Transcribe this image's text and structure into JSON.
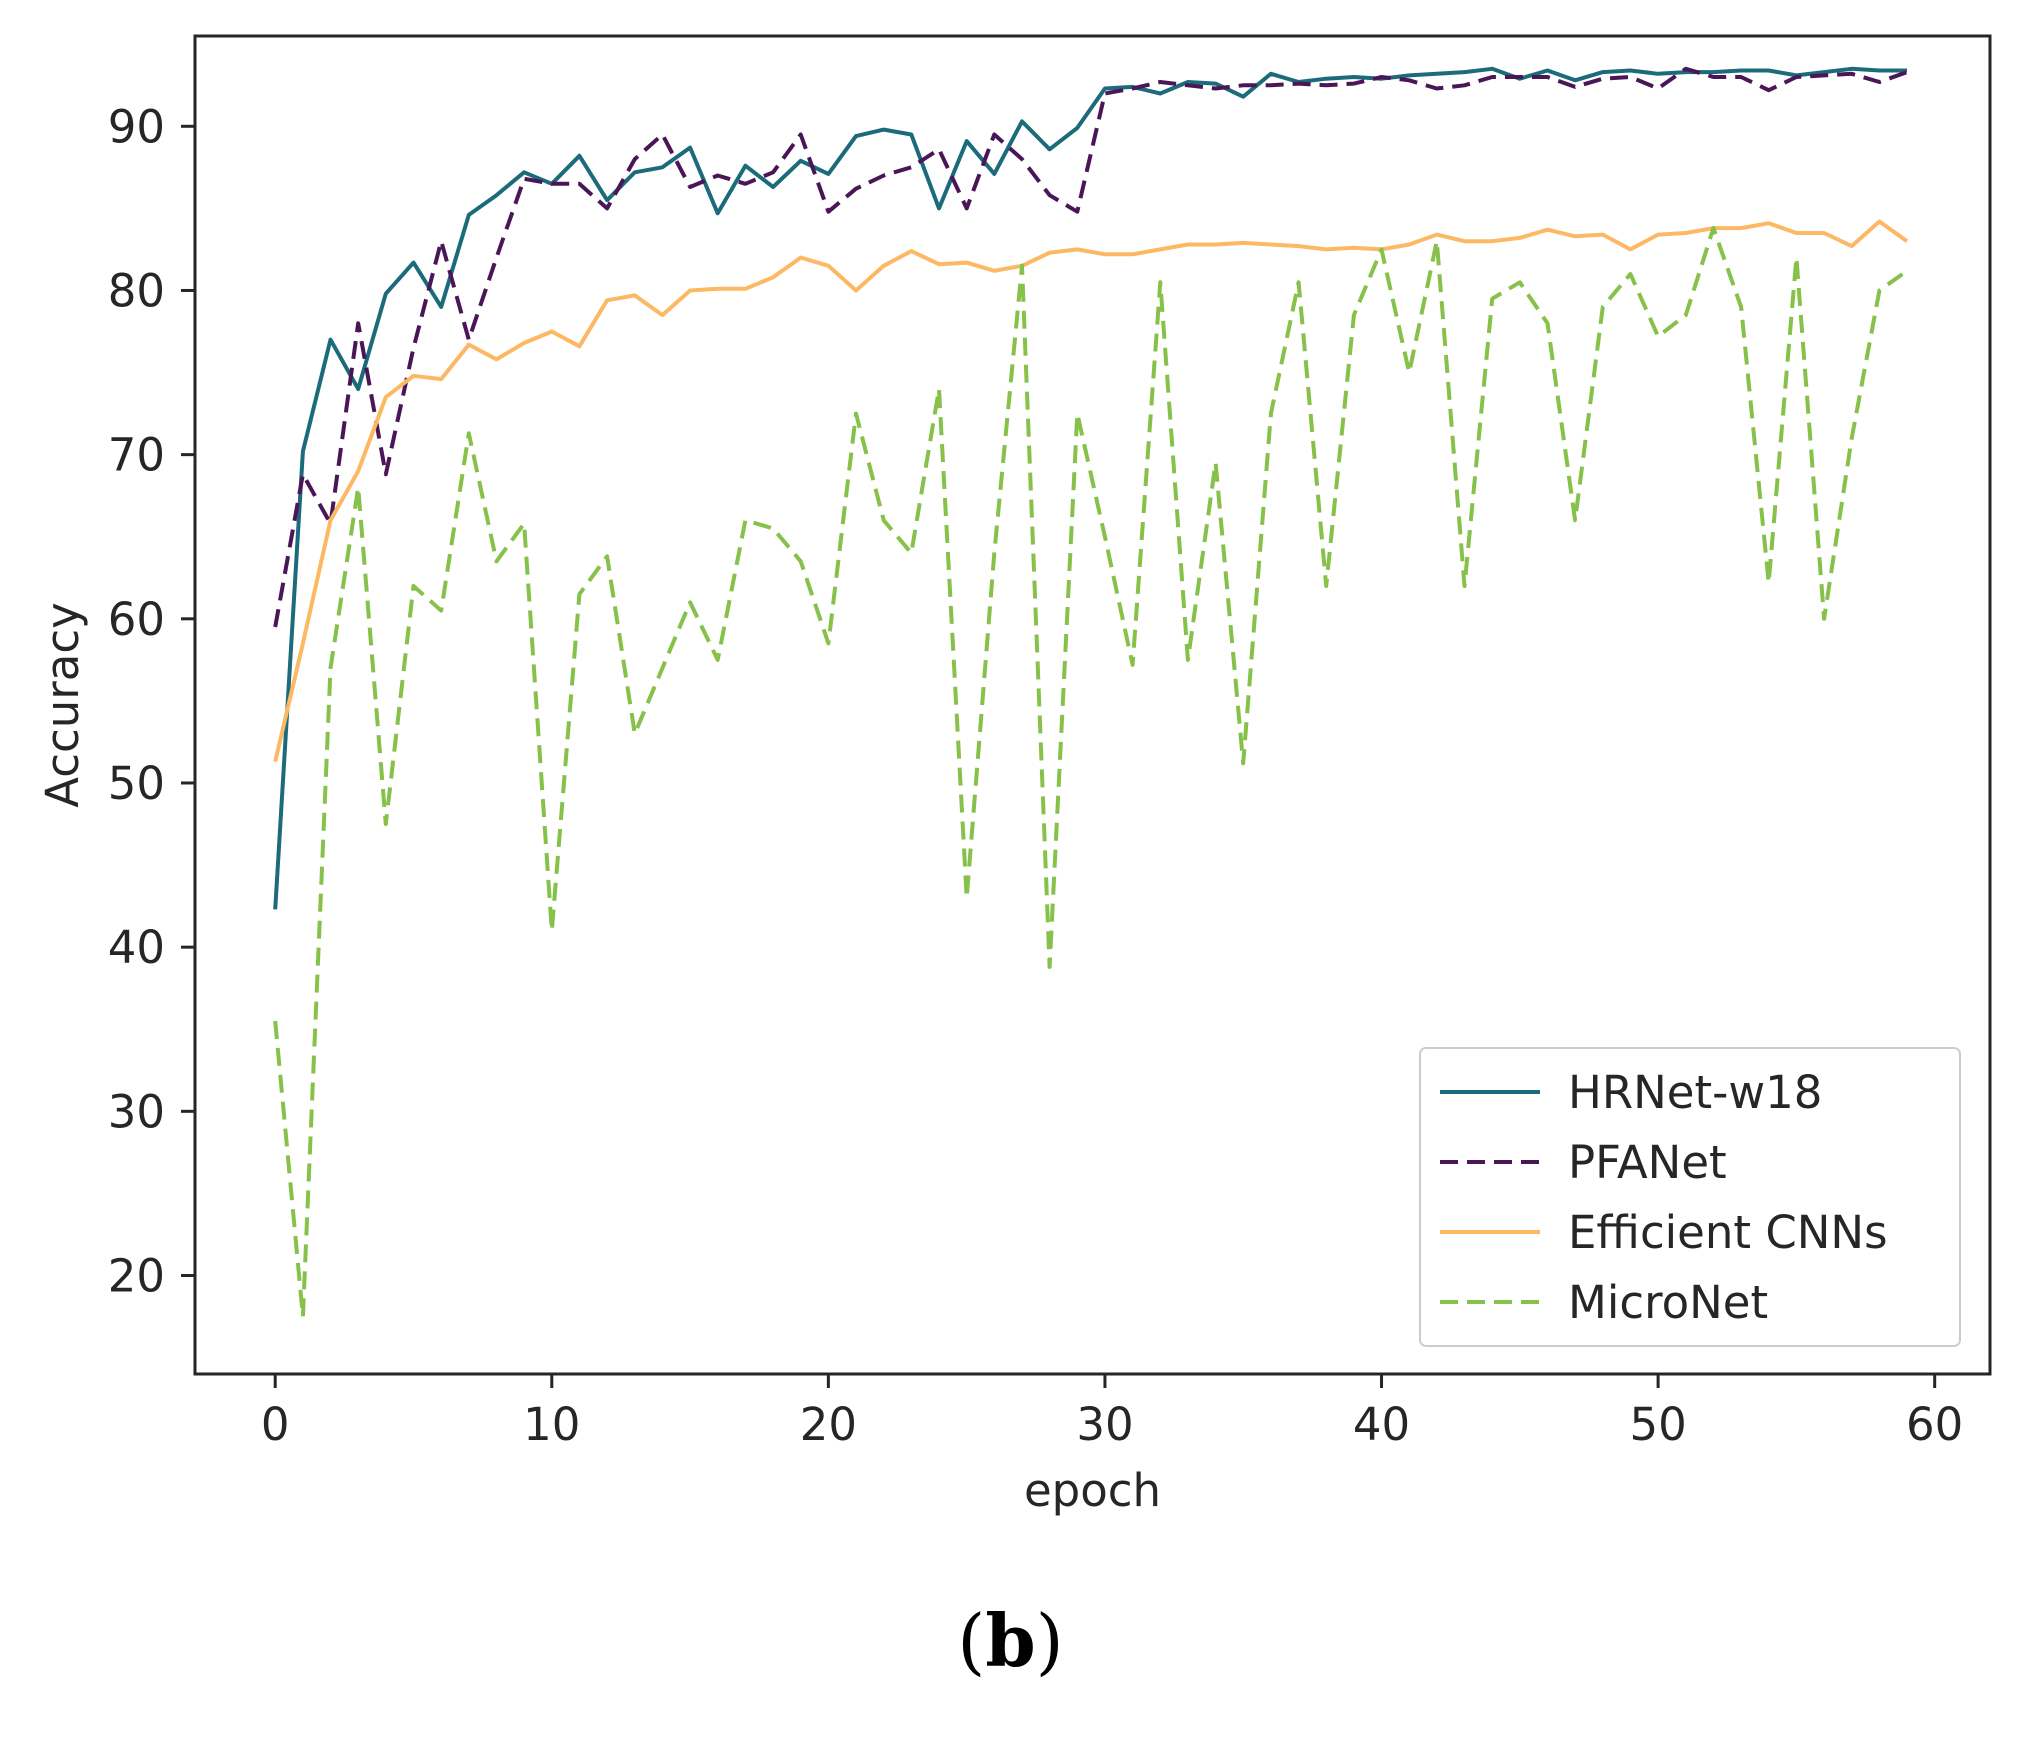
{
  "chart_data": {
    "type": "line",
    "title": "",
    "xlabel": "epoch",
    "ylabel": "Accuracy",
    "xlim": [
      -2.9,
      62
    ],
    "ylim": [
      14,
      95.5
    ],
    "xticks": [
      0,
      10,
      20,
      30,
      40,
      50,
      60
    ],
    "yticks": [
      20,
      30,
      40,
      50,
      60,
      70,
      80,
      90
    ],
    "grid": false,
    "legend_position": "lower-right",
    "x": [
      0,
      1,
      2,
      3,
      4,
      5,
      6,
      7,
      8,
      9,
      10,
      11,
      12,
      13,
      14,
      15,
      16,
      17,
      18,
      19,
      20,
      21,
      22,
      23,
      24,
      25,
      26,
      27,
      28,
      29,
      30,
      31,
      32,
      33,
      34,
      35,
      36,
      37,
      38,
      39,
      40,
      41,
      42,
      43,
      44,
      45,
      46,
      47,
      48,
      49,
      50,
      51,
      52,
      53,
      54,
      55,
      56,
      57,
      58,
      59
    ],
    "series": [
      {
        "name": "HRNet-w18",
        "color": "#1b6b7b",
        "style": "solid",
        "values": [
          42.3,
          70.2,
          77.0,
          74.0,
          79.8,
          81.7,
          79.0,
          84.6,
          85.8,
          87.2,
          86.5,
          88.2,
          85.5,
          87.2,
          87.5,
          88.7,
          84.7,
          87.6,
          86.3,
          87.9,
          87.1,
          89.4,
          89.8,
          89.5,
          85.0,
          89.1,
          87.1,
          90.3,
          88.6,
          89.9,
          92.3,
          92.4,
          92.0,
          92.7,
          92.6,
          91.8,
          93.2,
          92.7,
          92.9,
          93.0,
          92.9,
          93.1,
          93.2,
          93.3,
          93.5,
          92.9,
          93.4,
          92.8,
          93.3,
          93.4,
          93.2,
          93.3,
          93.3,
          93.4,
          93.4,
          93.1,
          93.3,
          93.5,
          93.4,
          93.4
        ]
      },
      {
        "name": "PFANet",
        "color": "#4b1658",
        "style": "dashed",
        "values": [
          59.5,
          68.8,
          65.8,
          78.0,
          68.8,
          76.5,
          83.0,
          77.0,
          82.0,
          86.8,
          86.5,
          86.5,
          85.0,
          88.0,
          89.5,
          86.3,
          87.0,
          86.5,
          87.2,
          89.5,
          84.8,
          86.2,
          87.0,
          87.5,
          88.6,
          85.0,
          89.5,
          88.0,
          85.8,
          84.8,
          92.0,
          92.3,
          92.7,
          92.5,
          92.3,
          92.5,
          92.5,
          92.6,
          92.5,
          92.6,
          93.0,
          92.8,
          92.3,
          92.5,
          93.0,
          93.0,
          93.0,
          92.4,
          92.9,
          93.0,
          92.3,
          93.5,
          93.0,
          93.0,
          92.2,
          93.0,
          93.1,
          93.2,
          92.7,
          93.3
        ]
      },
      {
        "name": "Efficient CNNs",
        "color": "#fcb863",
        "style": "solid",
        "values": [
          51.3,
          58.5,
          66.0,
          69.0,
          73.5,
          74.8,
          74.6,
          76.7,
          75.8,
          76.8,
          77.5,
          76.6,
          79.4,
          79.7,
          78.5,
          80.0,
          80.1,
          80.1,
          80.8,
          82.0,
          81.5,
          80.0,
          81.5,
          82.4,
          81.6,
          81.7,
          81.2,
          81.5,
          82.3,
          82.5,
          82.2,
          82.2,
          82.5,
          82.8,
          82.8,
          82.9,
          82.8,
          82.7,
          82.5,
          82.6,
          82.5,
          82.8,
          83.4,
          83.0,
          83.0,
          83.2,
          83.7,
          83.3,
          83.4,
          82.5,
          83.4,
          83.5,
          83.8,
          83.8,
          84.1,
          83.5,
          83.5,
          82.7,
          84.2,
          83.0
        ]
      },
      {
        "name": "MicroNet",
        "color": "#86c149",
        "style": "dashed",
        "values": [
          35.5,
          17.5,
          57.0,
          68.0,
          47.5,
          62.0,
          60.5,
          71.3,
          63.5,
          65.8,
          41.0,
          61.5,
          63.8,
          53.0,
          57.0,
          61.0,
          57.5,
          66.0,
          65.5,
          63.5,
          58.5,
          72.5,
          66.0,
          64.0,
          74.0,
          43.0,
          64.0,
          81.5,
          38.8,
          72.5,
          65.0,
          57.2,
          80.5,
          57.5,
          69.5,
          51.2,
          72.5,
          80.5,
          62.0,
          78.5,
          82.5,
          75.0,
          83.0,
          62.0,
          79.5,
          80.5,
          78.0,
          66.0,
          79.0,
          81.0,
          77.2,
          78.5,
          83.8,
          79.0,
          62.2,
          82.0,
          60.0,
          71.0,
          80.0,
          81.2
        ]
      }
    ]
  },
  "caption": {
    "open": "(",
    "letter": "b",
    "close": ")"
  }
}
